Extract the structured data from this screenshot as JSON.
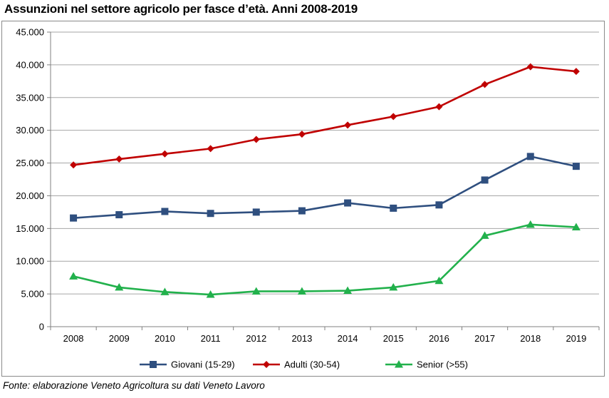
{
  "title": "Assunzioni nel settore agricolo per fasce d’età. Anni 2008-2019",
  "source": "Fonte: elaborazione Veneto Agricoltura su dati Veneto Lavoro",
  "colors": {
    "giovani": "#2f4f7f",
    "adulti": "#c00000",
    "senior": "#22b14c",
    "grid": "#a6a6a6",
    "axis": "#808080"
  },
  "chart_data": {
    "type": "line",
    "title": "Assunzioni nel settore agricolo per fasce d’età. Anni 2008-2019",
    "xlabel": "",
    "ylabel": "",
    "categories": [
      "2008",
      "2009",
      "2010",
      "2011",
      "2012",
      "2013",
      "2014",
      "2015",
      "2016",
      "2017",
      "2018",
      "2019"
    ],
    "ylim": [
      0,
      45000
    ],
    "y_ticks": [
      0,
      5000,
      10000,
      15000,
      20000,
      25000,
      30000,
      35000,
      40000,
      45000
    ],
    "y_tick_labels": [
      "0",
      "5.000",
      "10.000",
      "15.000",
      "20.000",
      "25.000",
      "30.000",
      "35.000",
      "40.000",
      "45.000"
    ],
    "grid": true,
    "legend_position": "bottom",
    "series": [
      {
        "name": "Giovani (15-29)",
        "marker": "square",
        "color": "#2f4f7f",
        "values": [
          16600,
          17100,
          17600,
          17300,
          17500,
          17700,
          18900,
          18100,
          18600,
          22400,
          26000,
          24500
        ]
      },
      {
        "name": "Adulti (30-54)",
        "marker": "diamond",
        "color": "#c00000",
        "values": [
          24700,
          25600,
          26400,
          27200,
          28600,
          29400,
          30800,
          32100,
          33600,
          37000,
          39700,
          39000
        ]
      },
      {
        "name": "Senior (>55)",
        "marker": "triangle",
        "color": "#22b14c",
        "values": [
          7700,
          6000,
          5300,
          4900,
          5400,
          5400,
          5500,
          6000,
          7000,
          13900,
          15600,
          15200
        ]
      }
    ]
  }
}
